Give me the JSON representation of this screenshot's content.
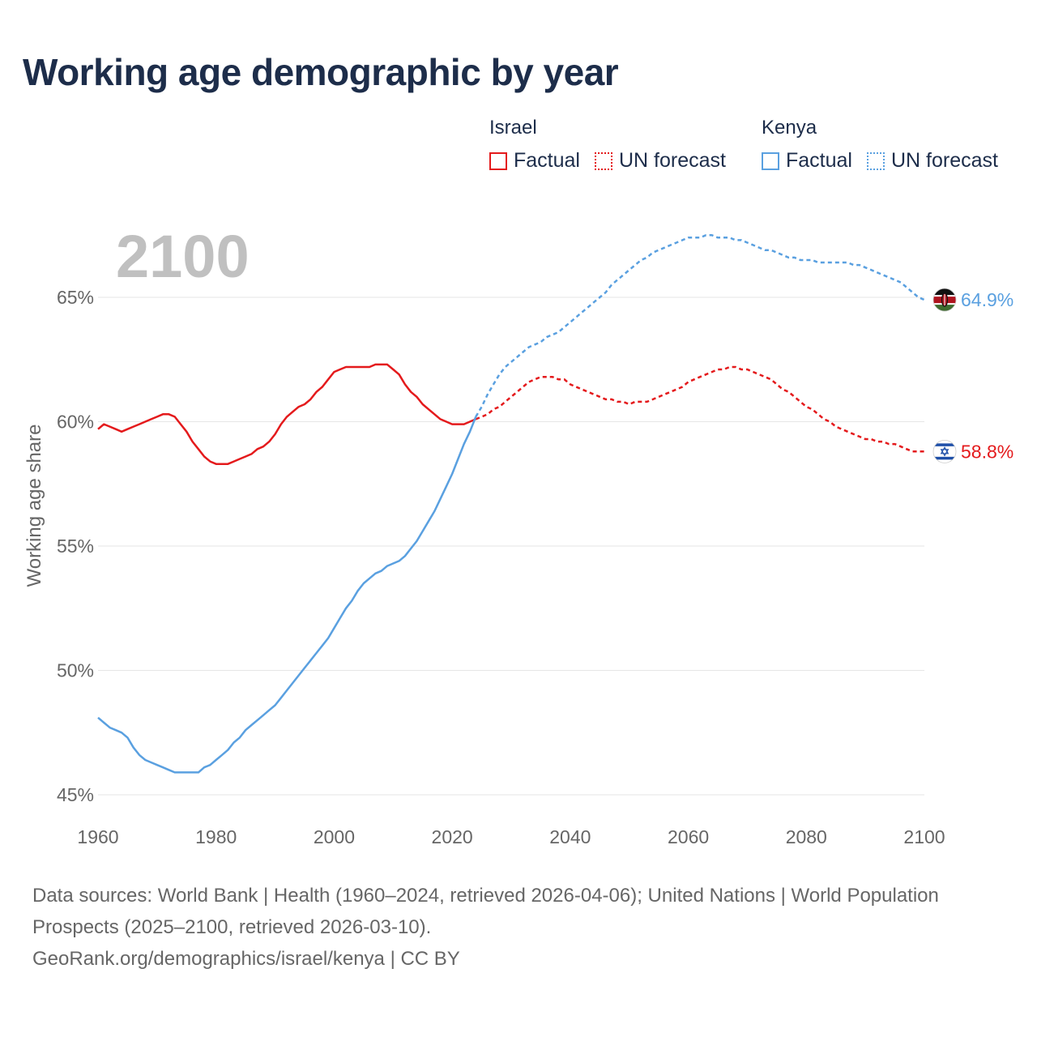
{
  "title": "Working age demographic by year",
  "legend": {
    "groups": [
      {
        "name": "Israel",
        "color": "#e41a1c",
        "factual_label": "Factual",
        "forecast_label": "UN forecast"
      },
      {
        "name": "Kenya",
        "color": "#5aa0e0",
        "factual_label": "Factual",
        "forecast_label": "UN forecast"
      }
    ]
  },
  "source": {
    "line1": "Data sources: World Bank | Health (1960–2024, retrieved 2026-04-06); United Nations | World Population Prospects (2025–2100, retrieved 2026-03-10).",
    "line2": "GeoRank.org/demographics/israel/kenya | CC BY"
  },
  "chart_data": {
    "type": "line",
    "title": "Working age demographic by year",
    "year_label": "2100",
    "xlabel": "",
    "ylabel": "Working age share",
    "xlim": [
      1960,
      2100
    ],
    "ylim": [
      45,
      67.5
    ],
    "x_ticks": [
      1960,
      1980,
      2000,
      2020,
      2040,
      2060,
      2080,
      2100
    ],
    "y_ticks": [
      45,
      50,
      55,
      60,
      65
    ],
    "y_tick_labels": [
      "45%",
      "50%",
      "55%",
      "60%",
      "65%"
    ],
    "grid": true,
    "series": [
      {
        "name": "Israel",
        "color": "#e41a1c",
        "end_label": "58.8%",
        "flag": "israel-flag",
        "factual": {
          "x": [
            1960,
            1961,
            1962,
            1963,
            1964,
            1965,
            1966,
            1967,
            1968,
            1969,
            1970,
            1971,
            1972,
            1973,
            1974,
            1975,
            1976,
            1977,
            1978,
            1979,
            1980,
            1981,
            1982,
            1983,
            1984,
            1985,
            1986,
            1987,
            1988,
            1989,
            1990,
            1991,
            1992,
            1993,
            1994,
            1995,
            1996,
            1997,
            1998,
            1999,
            2000,
            2001,
            2002,
            2003,
            2004,
            2005,
            2006,
            2007,
            2008,
            2009,
            2010,
            2011,
            2012,
            2013,
            2014,
            2015,
            2016,
            2017,
            2018,
            2019,
            2020,
            2021,
            2022,
            2023,
            2024
          ],
          "y": [
            59.7,
            59.9,
            59.8,
            59.7,
            59.6,
            59.7,
            59.8,
            59.9,
            60.0,
            60.1,
            60.2,
            60.3,
            60.3,
            60.2,
            59.9,
            59.6,
            59.2,
            58.9,
            58.6,
            58.4,
            58.3,
            58.3,
            58.3,
            58.4,
            58.5,
            58.6,
            58.7,
            58.9,
            59.0,
            59.2,
            59.5,
            59.9,
            60.2,
            60.4,
            60.6,
            60.7,
            60.9,
            61.2,
            61.4,
            61.7,
            62.0,
            62.1,
            62.2,
            62.2,
            62.2,
            62.2,
            62.2,
            62.3,
            62.3,
            62.3,
            62.1,
            61.9,
            61.5,
            61.2,
            61.0,
            60.7,
            60.5,
            60.3,
            60.1,
            60.0,
            59.9,
            59.9,
            59.9,
            60.0,
            60.1
          ]
        },
        "forecast": {
          "x": [
            2024,
            2025,
            2026,
            2027,
            2028,
            2029,
            2030,
            2031,
            2032,
            2033,
            2034,
            2035,
            2036,
            2037,
            2038,
            2039,
            2040,
            2041,
            2042,
            2043,
            2044,
            2045,
            2046,
            2047,
            2048,
            2049,
            2050,
            2051,
            2052,
            2053,
            2054,
            2055,
            2056,
            2057,
            2058,
            2059,
            2060,
            2061,
            2062,
            2063,
            2064,
            2065,
            2066,
            2067,
            2068,
            2069,
            2070,
            2071,
            2072,
            2073,
            2074,
            2075,
            2076,
            2077,
            2078,
            2079,
            2080,
            2081,
            2082,
            2083,
            2084,
            2085,
            2086,
            2087,
            2088,
            2089,
            2090,
            2091,
            2092,
            2093,
            2094,
            2095,
            2096,
            2097,
            2098,
            2099,
            2100
          ],
          "y": [
            60.1,
            60.2,
            60.3,
            60.5,
            60.6,
            60.8,
            61.0,
            61.2,
            61.4,
            61.6,
            61.7,
            61.8,
            61.8,
            61.8,
            61.7,
            61.7,
            61.5,
            61.4,
            61.3,
            61.2,
            61.1,
            61.0,
            60.9,
            60.9,
            60.8,
            60.8,
            60.7,
            60.8,
            60.8,
            60.8,
            60.9,
            61.0,
            61.1,
            61.2,
            61.3,
            61.4,
            61.6,
            61.7,
            61.8,
            61.9,
            62.0,
            62.1,
            62.1,
            62.2,
            62.2,
            62.1,
            62.1,
            62.0,
            61.9,
            61.8,
            61.7,
            61.5,
            61.3,
            61.2,
            61.0,
            60.8,
            60.6,
            60.5,
            60.3,
            60.1,
            60.0,
            59.8,
            59.7,
            59.6,
            59.5,
            59.4,
            59.3,
            59.3,
            59.2,
            59.2,
            59.1,
            59.1,
            59.0,
            58.9,
            58.8,
            58.8,
            58.8
          ]
        }
      },
      {
        "name": "Kenya",
        "color": "#5aa0e0",
        "end_label": "64.9%",
        "flag": "kenya-flag",
        "factual": {
          "x": [
            1960,
            1961,
            1962,
            1963,
            1964,
            1965,
            1966,
            1967,
            1968,
            1969,
            1970,
            1971,
            1972,
            1973,
            1974,
            1975,
            1976,
            1977,
            1978,
            1979,
            1980,
            1981,
            1982,
            1983,
            1984,
            1985,
            1986,
            1987,
            1988,
            1989,
            1990,
            1991,
            1992,
            1993,
            1994,
            1995,
            1996,
            1997,
            1998,
            1999,
            2000,
            2001,
            2002,
            2003,
            2004,
            2005,
            2006,
            2007,
            2008,
            2009,
            2010,
            2011,
            2012,
            2013,
            2014,
            2015,
            2016,
            2017,
            2018,
            2019,
            2020,
            2021,
            2022,
            2023,
            2024
          ],
          "y": [
            48.1,
            47.9,
            47.7,
            47.6,
            47.5,
            47.3,
            46.9,
            46.6,
            46.4,
            46.3,
            46.2,
            46.1,
            46.0,
            45.9,
            45.9,
            45.9,
            45.9,
            45.9,
            46.1,
            46.2,
            46.4,
            46.6,
            46.8,
            47.1,
            47.3,
            47.6,
            47.8,
            48.0,
            48.2,
            48.4,
            48.6,
            48.9,
            49.2,
            49.5,
            49.8,
            50.1,
            50.4,
            50.7,
            51.0,
            51.3,
            51.7,
            52.1,
            52.5,
            52.8,
            53.2,
            53.5,
            53.7,
            53.9,
            54.0,
            54.2,
            54.3,
            54.4,
            54.6,
            54.9,
            55.2,
            55.6,
            56.0,
            56.4,
            56.9,
            57.4,
            57.9,
            58.5,
            59.1,
            59.6,
            60.2
          ]
        },
        "forecast": {
          "x": [
            2024,
            2025,
            2026,
            2027,
            2028,
            2029,
            2030,
            2031,
            2032,
            2033,
            2034,
            2035,
            2036,
            2037,
            2038,
            2039,
            2040,
            2041,
            2042,
            2043,
            2044,
            2045,
            2046,
            2047,
            2048,
            2049,
            2050,
            2051,
            2052,
            2053,
            2054,
            2055,
            2056,
            2057,
            2058,
            2059,
            2060,
            2061,
            2062,
            2063,
            2064,
            2065,
            2066,
            2067,
            2068,
            2069,
            2070,
            2071,
            2072,
            2073,
            2074,
            2075,
            2076,
            2077,
            2078,
            2079,
            2080,
            2081,
            2082,
            2083,
            2084,
            2085,
            2086,
            2087,
            2088,
            2089,
            2090,
            2091,
            2092,
            2093,
            2094,
            2095,
            2096,
            2097,
            2098,
            2099,
            2100
          ],
          "y": [
            60.2,
            60.6,
            61.1,
            61.5,
            61.9,
            62.2,
            62.4,
            62.6,
            62.8,
            63.0,
            63.1,
            63.2,
            63.4,
            63.5,
            63.6,
            63.8,
            64.0,
            64.2,
            64.4,
            64.6,
            64.8,
            65.0,
            65.2,
            65.5,
            65.7,
            65.9,
            66.1,
            66.3,
            66.5,
            66.6,
            66.8,
            66.9,
            67.0,
            67.1,
            67.2,
            67.3,
            67.4,
            67.4,
            67.4,
            67.5,
            67.5,
            67.4,
            67.4,
            67.4,
            67.3,
            67.3,
            67.2,
            67.1,
            67.0,
            66.9,
            66.9,
            66.8,
            66.7,
            66.6,
            66.6,
            66.5,
            66.5,
            66.5,
            66.4,
            66.4,
            66.4,
            66.4,
            66.4,
            66.4,
            66.3,
            66.3,
            66.2,
            66.1,
            66.0,
            65.9,
            65.8,
            65.7,
            65.6,
            65.4,
            65.2,
            65.0,
            64.9
          ]
        }
      }
    ]
  }
}
